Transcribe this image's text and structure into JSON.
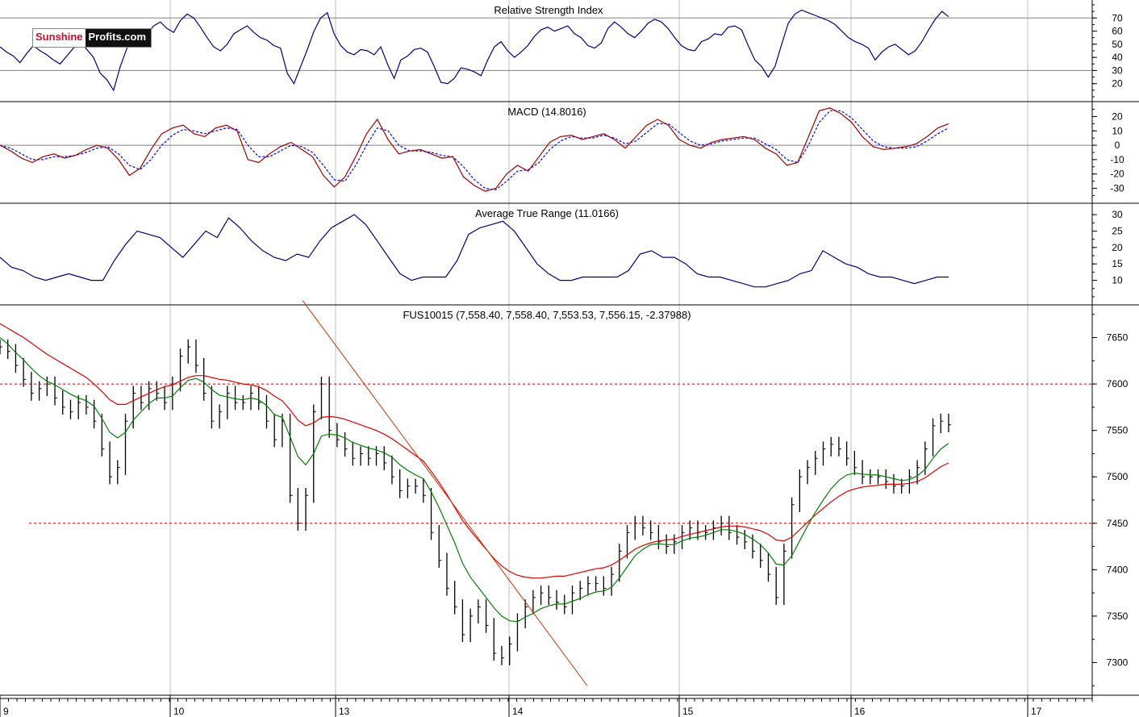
{
  "brand": {
    "part1": "Sunshine",
    "part2": "Profits.com"
  },
  "colors": {
    "price": "#000000",
    "ma_fast": "#008000",
    "ma_slow": "#e00000",
    "trendline": "#c83200",
    "indicator": "#000080",
    "macd": "#a00000",
    "signal": "#0000ff",
    "grid": "#bfbfbf",
    "level": "#c00000"
  },
  "chart_data": [
    {
      "type": "line",
      "title": "Relative Strength Index",
      "ylim": [
        10,
        80
      ],
      "y_ticks": [
        20,
        30,
        40,
        50,
        60,
        70
      ],
      "levels": [
        30,
        70
      ],
      "series": [
        {
          "values": [
            48,
            44,
            41,
            36,
            43,
            49,
            45,
            42,
            38,
            35,
            41,
            47,
            52,
            46,
            40,
            28,
            23,
            15,
            33,
            47,
            56,
            61,
            58,
            64,
            67,
            62,
            59,
            68,
            73,
            70,
            63,
            55,
            48,
            45,
            50,
            58,
            61,
            64,
            59,
            55,
            53,
            49,
            47,
            28,
            20,
            33,
            46,
            60,
            70,
            74,
            58,
            49,
            44,
            42,
            46,
            45,
            42,
            48,
            35,
            24,
            38,
            41,
            46,
            47,
            44,
            33,
            21,
            20,
            24,
            32,
            31,
            29,
            26,
            38,
            48,
            52,
            45,
            40,
            44,
            49,
            56,
            61,
            63,
            60,
            62,
            64,
            58,
            55,
            49,
            47,
            51,
            62,
            67,
            63,
            58,
            55,
            60,
            66,
            69,
            67,
            62,
            55,
            49,
            46,
            45,
            52,
            54,
            58,
            57,
            63,
            64,
            61,
            49,
            38,
            33,
            25,
            33,
            50,
            66,
            73,
            76,
            74,
            72,
            70,
            68,
            65,
            60,
            55,
            52,
            50,
            47,
            38,
            44,
            48,
            50,
            46,
            42,
            45,
            52,
            61,
            69,
            75,
            71
          ]
        }
      ],
      "x_tick_labels": [
        "9",
        "10",
        "13",
        "14",
        "15",
        "16",
        "17"
      ]
    },
    {
      "type": "line",
      "title": "MACD (14.8016)",
      "ylim": [
        -37,
        27
      ],
      "y_ticks": [
        -30,
        -20,
        -10,
        0,
        10,
        20
      ],
      "zero_line": 0,
      "series": [
        {
          "values": [
            0,
            -4,
            -9,
            -12,
            -8,
            -6,
            -9,
            -7,
            -3,
            0,
            -2,
            -10,
            -21,
            -16,
            -3,
            8,
            12,
            14,
            8,
            6,
            12,
            14,
            10,
            -10,
            -12,
            -6,
            -1,
            2,
            -3,
            -8,
            -21,
            -29,
            -22,
            -8,
            8,
            18,
            4,
            -6,
            -4,
            -3,
            -6,
            -9,
            -8,
            -22,
            -28,
            -32,
            -30,
            -20,
            -14,
            -18,
            -8,
            2,
            6,
            7,
            4,
            6,
            8,
            4,
            -2,
            6,
            14,
            18,
            14,
            4,
            0,
            -2,
            2,
            4,
            5,
            6,
            4,
            -2,
            -6,
            -14,
            -12,
            6,
            24,
            26,
            22,
            16,
            6,
            -1,
            -3,
            -2,
            -1,
            1,
            6,
            12,
            15
          ]
        },
        {
          "values": [
            0,
            -2,
            -6,
            -10,
            -10,
            -8,
            -8,
            -7,
            -5,
            -2,
            -1,
            -6,
            -14,
            -17,
            -10,
            0,
            7,
            11,
            10,
            8,
            10,
            12,
            11,
            0,
            -8,
            -8,
            -4,
            0,
            -1,
            -5,
            -14,
            -24,
            -25,
            -14,
            0,
            12,
            10,
            0,
            -4,
            -4,
            -5,
            -7,
            -8,
            -15,
            -24,
            -30,
            -31,
            -25,
            -18,
            -17,
            -12,
            -3,
            3,
            6,
            5,
            5,
            7,
            5,
            1,
            3,
            9,
            15,
            15,
            9,
            3,
            0,
            1,
            3,
            4,
            5,
            5,
            1,
            -3,
            -10,
            -12,
            0,
            16,
            24,
            24,
            19,
            11,
            3,
            -1,
            -2,
            -2,
            -1,
            3,
            8,
            12
          ]
        }
      ],
      "x_tick_labels": [
        "9",
        "10",
        "13",
        "14",
        "15",
        "16",
        "17"
      ]
    },
    {
      "type": "line",
      "title": "Average True Range (11.0166)",
      "ylim": [
        4,
        32
      ],
      "y_ticks": [
        10,
        15,
        20,
        25,
        30
      ],
      "series": [
        {
          "values": [
            17,
            14,
            13,
            11,
            10,
            11,
            12,
            11,
            10,
            10,
            16,
            21,
            25,
            24,
            23,
            20,
            17,
            21,
            25,
            23,
            29,
            26,
            22,
            19,
            17,
            16,
            18,
            17,
            22,
            26,
            28,
            30,
            27,
            22,
            17,
            12,
            10,
            11,
            11,
            11,
            16,
            24,
            26,
            27,
            28,
            25,
            20,
            15,
            12,
            10,
            10,
            11,
            11,
            11,
            11,
            13,
            18,
            19,
            17,
            17,
            15,
            12,
            11,
            11,
            10,
            9,
            8,
            8,
            9,
            10,
            12,
            13,
            19,
            17,
            15,
            14,
            12,
            11,
            11,
            10,
            9,
            10,
            11,
            11
          ]
        }
      ],
      "x_tick_labels": [
        "9",
        "10",
        "13",
        "14",
        "15",
        "16",
        "17"
      ]
    },
    {
      "type": "line",
      "title": "FUS10015 (7,558.40, 7,558.40, 7,553.53, 7,556.15, -2.37988)",
      "ylim": [
        7270,
        7680
      ],
      "y_ticks": [
        7300,
        7350,
        7400,
        7450,
        7500,
        7550,
        7600,
        7650
      ],
      "levels": [
        7600,
        7450
      ],
      "x_tick_labels": [
        "9",
        "10",
        "13",
        "14",
        "15",
        "16",
        "17"
      ],
      "series": [
        {
          "values": [
            7640,
            7635,
            7620,
            7605,
            7590,
            7595,
            7600,
            7585,
            7575,
            7570,
            7580,
            7575,
            7560,
            7530,
            7500,
            7510,
            7560,
            7590,
            7580,
            7595,
            7590,
            7580,
            7600,
            7630,
            7640,
            7620,
            7590,
            7560,
            7570,
            7590,
            7580,
            7580,
            7590,
            7580,
            7560,
            7540,
            7560,
            7480,
            7450,
            7480,
            7570,
            7600,
            7550,
            7540,
            7530,
            7520,
            7525,
            7520,
            7525,
            7515,
            7500,
            7485,
            7490,
            7490,
            7480,
            7440,
            7410,
            7380,
            7360,
            7330,
            7350,
            7360,
            7340,
            7310,
            7305,
            7320,
            7345,
            7360,
            7370,
            7375,
            7370,
            7365,
            7360,
            7375,
            7380,
            7385,
            7385,
            7380,
            7395,
            7420,
            7440,
            7450,
            7445,
            7440,
            7430,
            7425,
            7430,
            7440,
            7445,
            7440,
            7440,
            7445,
            7450,
            7440,
            7435,
            7430,
            7420,
            7410,
            7395,
            7370,
            7420,
            7470,
            7500,
            7510,
            7520,
            7530,
            7535,
            7530,
            7520,
            7510,
            7500,
            7500,
            7500,
            7495,
            7490,
            7490,
            7500,
            7510,
            7530,
            7555,
            7560,
            7556
          ]
        },
        {
          "values": [
            7650,
            7643,
            7634,
            7626,
            7617,
            7609,
            7603,
            7599,
            7594,
            7589,
            7585,
            7582,
            7576,
            7563,
            7548,
            7542,
            7548,
            7561,
            7570,
            7579,
            7585,
            7585,
            7587,
            7596,
            7604,
            7606,
            7602,
            7594,
            7588,
            7586,
            7584,
            7583,
            7585,
            7583,
            7577,
            7567,
            7564,
            7543,
            7522,
            7513,
            7525,
            7544,
            7546,
            7545,
            7542,
            7537,
            7534,
            7531,
            7529,
            7526,
            7521,
            7513,
            7507,
            7502,
            7498,
            7484,
            7467,
            7448,
            7429,
            7407,
            7392,
            7381,
            7370,
            7359,
            7350,
            7345,
            7344,
            7349,
            7353,
            7358,
            7361,
            7363,
            7363,
            7366,
            7369,
            7373,
            7376,
            7377,
            7381,
            7391,
            7403,
            7415,
            7422,
            7427,
            7428,
            7427,
            7427,
            7431,
            7434,
            7435,
            7437,
            7440,
            7443,
            7443,
            7441,
            7438,
            7433,
            7427,
            7418,
            7406,
            7405,
            7415,
            7431,
            7447,
            7462,
            7475,
            7487,
            7496,
            7502,
            7504,
            7503,
            7502,
            7502,
            7500,
            7498,
            7496,
            7497,
            7501,
            7508,
            7520,
            7530,
            7536
          ]
        },
        {
          "values": [
            7665,
            7660,
            7655,
            7650,
            7644,
            7638,
            7632,
            7627,
            7622,
            7617,
            7612,
            7607,
            7600,
            7592,
            7583,
            7578,
            7578,
            7582,
            7586,
            7590,
            7594,
            7597,
            7599,
            7603,
            7607,
            7609,
            7609,
            7607,
            7605,
            7604,
            7602,
            7600,
            7599,
            7597,
            7593,
            7587,
            7582,
            7572,
            7561,
            7555,
            7558,
            7564,
            7565,
            7564,
            7562,
            7559,
            7556,
            7553,
            7550,
            7546,
            7541,
            7535,
            7529,
            7523,
            7517,
            7506,
            7494,
            7481,
            7467,
            7453,
            7442,
            7432,
            7422,
            7412,
            7404,
            7398,
            7394,
            7392,
            7391,
            7391,
            7392,
            7393,
            7393,
            7395,
            7397,
            7399,
            7401,
            7402,
            7405,
            7410,
            7416,
            7422,
            7426,
            7429,
            7431,
            7432,
            7433,
            7436,
            7438,
            7440,
            7442,
            7444,
            7446,
            7447,
            7447,
            7446,
            7444,
            7442,
            7438,
            7432,
            7431,
            7435,
            7443,
            7451,
            7459,
            7466,
            7473,
            7479,
            7484,
            7487,
            7489,
            7490,
            7491,
            7492,
            7492,
            7492,
            7493,
            7495,
            7499,
            7505,
            7511,
            7515
          ]
        }
      ],
      "trendline": {
        "start_value": 7690,
        "end_value": 7275
      }
    }
  ]
}
